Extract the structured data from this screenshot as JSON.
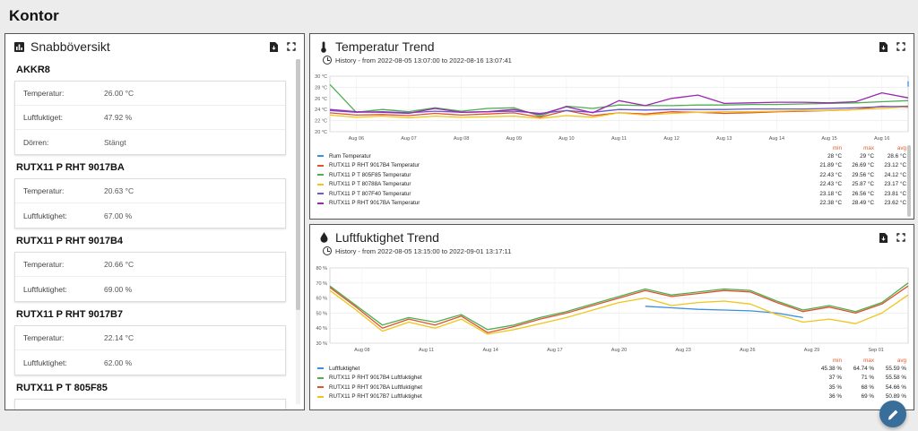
{
  "page": {
    "title": "Kontor"
  },
  "quick": {
    "title": "Snabböversikt",
    "icon": "bar-chart-icon",
    "devices": [
      {
        "name": "AKKR8",
        "rows": [
          {
            "k": "Temperatur:",
            "v": "26.00 °C"
          },
          {
            "k": "Luftfuktiget:",
            "v": "47.92 %"
          },
          {
            "k": "Dörren:",
            "v": "Stängt"
          }
        ]
      },
      {
        "name": "RUTX11 P RHT 9017BA",
        "rows": [
          {
            "k": "Temperatur:",
            "v": "20.63 °C"
          },
          {
            "k": "Luftfuktighet:",
            "v": "67.00 %"
          }
        ]
      },
      {
        "name": "RUTX11 P RHT 9017B4",
        "rows": [
          {
            "k": "Temperatur:",
            "v": "20.66 °C"
          },
          {
            "k": "Luftfuktighet:",
            "v": "69.00 %"
          }
        ]
      },
      {
        "name": "RUTX11 P RHT 9017B7",
        "rows": [
          {
            "k": "Temperatur:",
            "v": "22.14 °C"
          },
          {
            "k": "Luftfuktighet:",
            "v": "62.00 %"
          }
        ]
      },
      {
        "name": "RUTX11 P T 805F85",
        "rows": []
      }
    ]
  },
  "temp": {
    "title": "Temperatur Trend",
    "history": "History - from 2022-08-05 13:07:00 to 2022-08-16 13:07:41",
    "legend_head": {
      "min": "min",
      "max": "max",
      "avg": "avg"
    },
    "legend": [
      {
        "name": "Rum Temperatur",
        "color": "#3b8fe0",
        "min": "28 °C",
        "max": "29 °C",
        "avg": "28.6 °C"
      },
      {
        "name": "RUTX11 P RHT 9017B4 Temperatur",
        "color": "#e0512e",
        "min": "21.89 °C",
        "max": "26.69 °C",
        "avg": "23.12 °C"
      },
      {
        "name": "RUTX11 P T 805F85 Temperatur",
        "color": "#4caf50",
        "min": "22.43 °C",
        "max": "29.56 °C",
        "avg": "24.12 °C"
      },
      {
        "name": "RUTX11 P T 80788A Temperatur",
        "color": "#f0c419",
        "min": "22.43 °C",
        "max": "25.87 °C",
        "avg": "23.17 °C"
      },
      {
        "name": "RUTX11 P T 807F40 Temperatur",
        "color": "#6a5acd",
        "min": "23.18 °C",
        "max": "26.56 °C",
        "avg": "23.81 °C"
      },
      {
        "name": "RUTX11 P RHT 9017BA Temperatur",
        "color": "#9c27b0",
        "min": "22.38 °C",
        "max": "28.49 °C",
        "avg": "23.62 °C"
      }
    ]
  },
  "hum": {
    "title": "Luftfuktighet Trend",
    "history": "History - from 2022-08-05 13:15:00 to 2022-09-01 13:17:11",
    "legend_head": {
      "min": "min",
      "max": "max",
      "avg": "avg"
    },
    "legend": [
      {
        "name": "Luftfuktighet",
        "color": "#3b8fe0",
        "min": "45.38 %",
        "max": "64.74 %",
        "avg": "55.59 %"
      },
      {
        "name": "RUTX11 P RHT 9017B4 Luftfuktighet",
        "color": "#4caf50",
        "min": "37 %",
        "max": "71 %",
        "avg": "55.58 %"
      },
      {
        "name": "RUTX11 P RHT 9017BA Luftfuktighet",
        "color": "#e0512e",
        "min": "35 %",
        "max": "68 %",
        "avg": "54.66 %"
      },
      {
        "name": "RUTX11 P RHT 9017B7 Luftfuktighet",
        "color": "#f0c419",
        "min": "36 %",
        "max": "69 %",
        "avg": "50.89 %"
      }
    ]
  },
  "chart_data": [
    {
      "type": "line",
      "title": "",
      "y_unit": "°C",
      "ylim": [
        20,
        30
      ],
      "y_ticks": [
        "20 °C",
        "22 °C",
        "24 °C",
        "26 °C",
        "28 °C",
        "30 °C"
      ],
      "x_ticks": [
        "Aug 06",
        "Aug 07",
        "Aug 08",
        "Aug 09",
        "Aug 10",
        "Aug 11",
        "Aug 12",
        "Aug 13",
        "Aug 14",
        "Aug 15",
        "Aug 16"
      ],
      "x": [
        0,
        0.5,
        1,
        1.5,
        2,
        2.5,
        3,
        3.5,
        4,
        4.5,
        5,
        5.5,
        6,
        6.5,
        7,
        7.5,
        8,
        8.5,
        9,
        9.5,
        10,
        10.5,
        11
      ],
      "series": [
        {
          "name": "Rum Temperatur",
          "color": "#3b8fe0",
          "values": [
            null,
            null,
            null,
            null,
            null,
            null,
            null,
            null,
            null,
            null,
            null,
            null,
            null,
            null,
            null,
            null,
            null,
            null,
            null,
            null,
            null,
            null,
            28.6
          ]
        },
        {
          "name": "RUTX11 P RHT 9017B4 Temperatur",
          "color": "#e0512e",
          "values": [
            23.4,
            23.0,
            23.1,
            22.9,
            23.3,
            23.0,
            23.2,
            23.4,
            22.6,
            23.8,
            22.9,
            23.4,
            23.2,
            23.6,
            23.5,
            23.3,
            23.4,
            23.6,
            23.7,
            23.8,
            24.0,
            24.6,
            24.4
          ]
        },
        {
          "name": "RUTX11 P T 805F85 Temperatur",
          "color": "#4caf50",
          "values": [
            28.5,
            23.5,
            24.0,
            23.6,
            24.3,
            23.7,
            24.2,
            24.3,
            22.8,
            24.6,
            24.2,
            24.8,
            24.7,
            24.7,
            24.8,
            24.8,
            24.9,
            24.9,
            25.0,
            25.1,
            25.2,
            25.4,
            25.6
          ]
        },
        {
          "name": "RUTX11 P T 80788A Temperatur",
          "color": "#f0c419",
          "values": [
            23.0,
            22.6,
            22.8,
            22.5,
            22.8,
            22.6,
            22.7,
            22.8,
            22.4,
            22.9,
            22.6,
            23.4,
            23.0,
            23.3,
            23.5,
            23.6,
            23.6,
            23.7,
            23.8,
            23.8,
            24.0,
            24.2,
            24.5
          ]
        },
        {
          "name": "RUTX11 P T 807F40 Temperatur",
          "color": "#6a5acd",
          "values": [
            23.8,
            23.5,
            23.6,
            23.4,
            23.7,
            23.5,
            23.6,
            23.7,
            23.3,
            23.8,
            23.5,
            24.0,
            23.9,
            24.0,
            24.0,
            24.0,
            24.1,
            24.1,
            24.1,
            24.2,
            24.3,
            24.5,
            24.6
          ]
        },
        {
          "name": "RUTX11 P RHT 9017BA Temperatur",
          "color": "#9c27b0",
          "values": [
            24.0,
            23.6,
            23.5,
            23.3,
            24.2,
            23.5,
            23.6,
            24.0,
            23.1,
            24.5,
            23.4,
            25.6,
            24.7,
            26.0,
            26.6,
            25.1,
            25.2,
            25.3,
            25.3,
            25.2,
            25.4,
            27.0,
            26.1
          ]
        }
      ]
    },
    {
      "type": "line",
      "title": "",
      "y_unit": "%",
      "ylim": [
        30,
        80
      ],
      "y_ticks": [
        "30 %",
        "40 %",
        "50 %",
        "60 %",
        "70 %",
        "80 %"
      ],
      "x_ticks": [
        "Aug 08",
        "Aug 11",
        "Aug 14",
        "Aug 17",
        "Aug 20",
        "Aug 23",
        "Aug 26",
        "Aug 29",
        "Sep 01"
      ],
      "x": [
        0,
        1,
        2,
        3,
        4,
        5,
        6,
        7,
        8,
        9,
        10,
        11,
        12,
        13,
        14,
        15,
        16,
        17,
        18,
        19,
        20,
        21,
        22
      ],
      "series": [
        {
          "name": "Luftfuktighet",
          "color": "#3b8fe0",
          "values": [
            null,
            null,
            null,
            null,
            null,
            null,
            null,
            null,
            null,
            null,
            null,
            null,
            54.5,
            53.5,
            52.5,
            52.0,
            51.5,
            50.0,
            47.0,
            null,
            null,
            null,
            null
          ]
        },
        {
          "name": "RUTX11 P RHT 9017B4 Luftfuktighet",
          "color": "#4caf50",
          "values": [
            68,
            55,
            42,
            47,
            44,
            49,
            39,
            42,
            47,
            51,
            56,
            61,
            66,
            62,
            64,
            66,
            65,
            58,
            52,
            55,
            51,
            57,
            70
          ]
        },
        {
          "name": "RUTX11 P RHT 9017BA Luftfuktighet",
          "color": "#e0512e",
          "values": [
            67,
            54,
            40,
            46,
            42,
            48,
            37,
            41,
            46,
            50,
            55,
            60,
            65,
            61,
            63,
            65,
            64,
            57,
            51,
            54,
            50,
            56,
            68
          ]
        },
        {
          "name": "RUTX11 P RHT 9017B7 Luftfuktighet",
          "color": "#f0c419",
          "values": [
            65,
            52,
            38,
            44,
            40,
            46,
            36,
            39,
            43,
            47,
            52,
            57,
            60,
            55,
            57,
            58,
            56,
            49,
            44,
            46,
            43,
            50,
            62
          ]
        }
      ]
    }
  ]
}
